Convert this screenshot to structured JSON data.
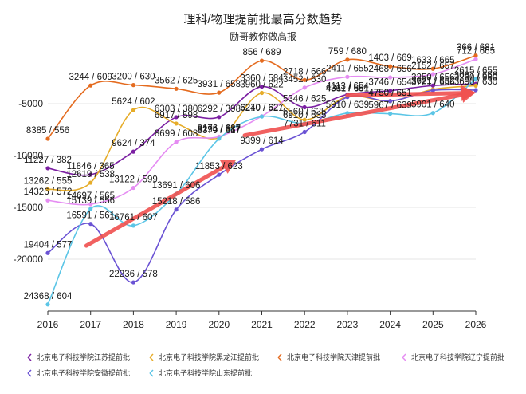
{
  "chart_data": {
    "type": "line",
    "title": "理科/物理提前批最高分数趋势",
    "subtitle": "励哥教你做高报",
    "x": [
      "2016",
      "2017",
      "2018",
      "2019",
      "2020",
      "2021",
      "2022",
      "2023",
      "2024",
      "2025",
      "2026"
    ],
    "yticks": [
      "-5000",
      "-10000",
      "-15000",
      "-20000"
    ],
    "ylim": [
      -25000,
      -1000
    ],
    "grid": true,
    "legend_position": "bottom",
    "series": [
      {
        "name": "北京电子科技学院江苏提前批",
        "color": "#7b1fa2",
        "points": [
          [
            2016,
            -11227,
            "11227 / 382"
          ],
          [
            2017,
            -11846,
            "11846 / 365"
          ],
          [
            2018,
            -9624,
            "9624 / 374"
          ],
          [
            2019,
            -6303,
            "6303 / 380"
          ],
          [
            2020,
            -6292,
            "6292 / 398"
          ],
          [
            2021,
            -3360,
            "3360 / 584"
          ],
          [
            2022,
            -5346,
            "5346 / 625"
          ],
          [
            2023,
            -4113,
            "4113 / 654"
          ],
          [
            2024,
            -3746,
            "3746 / 654"
          ],
          [
            2025,
            -3250,
            "3250 / 656"
          ],
          [
            2026,
            -3087,
            "3087 / 658"
          ]
        ]
      },
      {
        "name": "北京电子科技学院黑龙江提前批",
        "color": "#e6ac29",
        "points": [
          [
            2016,
            -13262,
            "13262 / 555"
          ],
          [
            2017,
            -12619,
            "12619 / 538"
          ],
          [
            2018,
            -5624,
            "5624 / 602"
          ],
          [
            2019,
            -6917,
            "6917 / 598"
          ],
          [
            2020,
            -8294,
            "8294 / 587"
          ],
          [
            2021,
            -3960,
            "3960 / 622"
          ],
          [
            2022,
            -6560,
            "6560 / 625"
          ],
          [
            2023,
            -4311,
            "4311 / 654"
          ],
          [
            2024,
            -4750,
            "4750 / 651"
          ],
          [
            2025,
            -3621,
            "3621 / 652"
          ],
          [
            2026,
            -3260,
            "3260 / 660"
          ]
        ]
      },
      {
        "name": "北京电子科技学院天津提前批",
        "color": "#e46b1f",
        "points": [
          [
            2016,
            -8385,
            "8385 / 556"
          ],
          [
            2017,
            -3244,
            "3244 / 609"
          ],
          [
            2018,
            -3200,
            "3200 / 630"
          ],
          [
            2019,
            -3562,
            "3562 / 625"
          ],
          [
            2020,
            -3931,
            "3931 / 658"
          ],
          [
            2021,
            -856,
            "856 / 689"
          ],
          [
            2022,
            -2718,
            "2718 / 666"
          ],
          [
            2023,
            -759,
            "759 / 680"
          ],
          [
            2024,
            -1403,
            "1403 / 669"
          ],
          [
            2025,
            -1633,
            "1633 / 665"
          ],
          [
            2026,
            -366,
            "366 / 681"
          ]
        ]
      },
      {
        "name": "北京电子科技学院辽宁提前批",
        "color": "#e58cf2",
        "points": [
          [
            2016,
            -14326,
            "14326 / 572"
          ],
          [
            2017,
            -14697,
            "14697 / 565"
          ],
          [
            2018,
            -13122,
            "13122 / 599"
          ],
          [
            2019,
            -8699,
            "8699 / 608"
          ],
          [
            2020,
            -8176,
            "8176 / 627"
          ],
          [
            2021,
            -6210,
            "6210 / 627"
          ],
          [
            2022,
            -3452,
            "3452 / 630"
          ],
          [
            2023,
            -2411,
            "2411 / 655"
          ],
          [
            2024,
            -2468,
            "2468 / 656"
          ],
          [
            2025,
            -2152,
            "2152 / 657"
          ],
          [
            2026,
            -712,
            "712 / 665"
          ]
        ]
      },
      {
        "name": "北京电子科技学院安徽提前批",
        "color": "#6a52d4",
        "points": [
          [
            2016,
            -19404,
            "19404 / 577"
          ],
          [
            2017,
            -16591,
            "16591 / 561"
          ],
          [
            2018,
            -22236,
            "22236 / 578"
          ],
          [
            2019,
            -15218,
            "15218 / 586"
          ],
          [
            2020,
            -11853,
            "11853 / 623"
          ],
          [
            2021,
            -9399,
            "9399 / 614"
          ],
          [
            2022,
            -7731,
            "7731 / 611"
          ],
          [
            2023,
            -4361,
            "4361 / 651"
          ],
          [
            2024,
            -4750,
            "4750 / 651"
          ],
          [
            2025,
            -3721,
            "3721 / 656"
          ],
          [
            2026,
            -3690,
            "3690 / 630"
          ]
        ]
      },
      {
        "name": "北京电子科技学院山东提前批",
        "color": "#5bc5e6",
        "points": [
          [
            2016,
            -24368,
            "24368 / 604"
          ],
          [
            2017,
            -15139,
            "15139 / 556"
          ],
          [
            2018,
            -16761,
            "16761 / 607"
          ],
          [
            2019,
            -13691,
            "13691 / 606"
          ],
          [
            2020,
            -8379,
            "8379 / 617"
          ],
          [
            2021,
            -6240,
            "6240 / 621"
          ],
          [
            2022,
            -6910,
            "6910 / 635"
          ],
          [
            2023,
            -5910,
            "5910 / 639"
          ],
          [
            2024,
            -5967,
            "5967 / 639"
          ],
          [
            2025,
            -5901,
            "5901 / 640"
          ],
          [
            2026,
            -2615,
            "2615 / 655"
          ]
        ]
      }
    ]
  }
}
